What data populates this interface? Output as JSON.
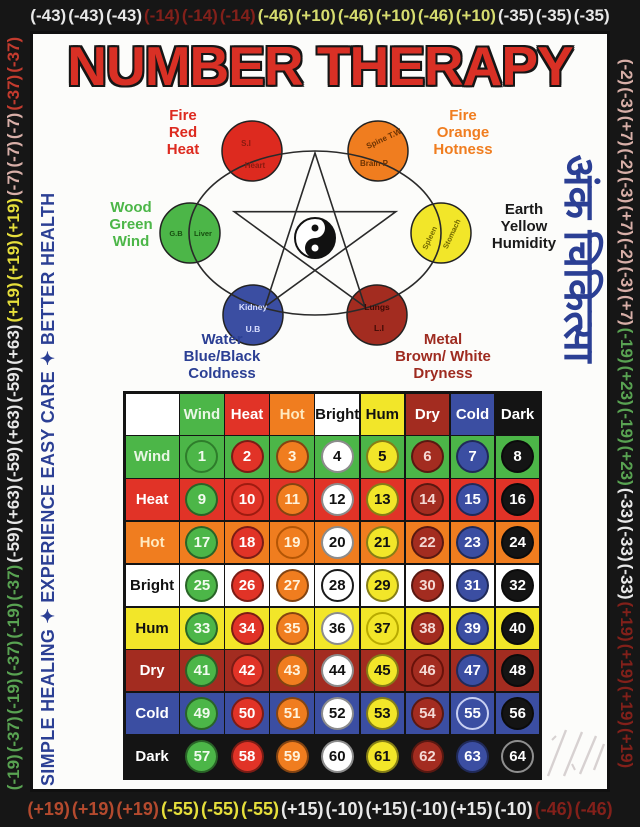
{
  "title": "NUMBER THERAPY",
  "side_title_hindi": "अंक चिकित्सा",
  "slogan": "SIMPLE HEALING ✦ EXPERIENCE  EASY CARE  ✦  BETTER HEALTH",
  "border_palette": {
    "wh": "#E8E8E8",
    "dr": "#82201A",
    "rd": "#C23B2E",
    "yg": "#D6DC6F",
    "ye": "#E6DF3B",
    "gr": "#59A352",
    "pk": "#D8AFA8",
    "or": "#B44A2E"
  },
  "border_numbers": {
    "top": [
      [
        "(-43)",
        "wh"
      ],
      [
        "(-43)",
        "wh"
      ],
      [
        "(-43)",
        "wh"
      ],
      [
        "(-14)",
        "dr"
      ],
      [
        "(-14)",
        "dr"
      ],
      [
        "(-14)",
        "dr"
      ],
      [
        "(-46)",
        "yg"
      ],
      [
        "(+10)",
        "yg"
      ],
      [
        "(-46)",
        "yg"
      ],
      [
        "(+10)",
        "yg"
      ],
      [
        "(-46)",
        "yg"
      ],
      [
        "(+10)",
        "yg"
      ],
      [
        "(-35)",
        "wh"
      ],
      [
        "(-35)",
        "wh"
      ],
      [
        "(-35)",
        "wh"
      ]
    ],
    "bottom": [
      [
        "(+19)",
        "or"
      ],
      [
        "(+19)",
        "or"
      ],
      [
        "(+19)",
        "or"
      ],
      [
        "(-55)",
        "ye"
      ],
      [
        "(-55)",
        "ye"
      ],
      [
        "(-55)",
        "ye"
      ],
      [
        "(+15)",
        "wh"
      ],
      [
        "(-10)",
        "wh"
      ],
      [
        "(+15)",
        "wh"
      ],
      [
        "(-10)",
        "wh"
      ],
      [
        "(+15)",
        "wh"
      ],
      [
        "(-10)",
        "wh"
      ],
      [
        "(-46)",
        "dr"
      ],
      [
        "(-46)",
        "dr"
      ]
    ],
    "left_bottom_to_top": [
      [
        "(-19)",
        "gr"
      ],
      [
        "(-37)",
        "gr"
      ],
      [
        "(-19)",
        "gr"
      ],
      [
        "(-37)",
        "gr"
      ],
      [
        "(-19)",
        "gr"
      ],
      [
        "(-37)",
        "gr"
      ],
      [
        "(-59)",
        "wh"
      ],
      [
        "(+63)",
        "wh"
      ],
      [
        "(-59)",
        "wh"
      ],
      [
        "(+63)",
        "wh"
      ],
      [
        "(-59)",
        "wh"
      ],
      [
        "(+63)",
        "wh"
      ],
      [
        "(+19)",
        "ye"
      ],
      [
        "(+19)",
        "ye"
      ],
      [
        "(+19)",
        "ye"
      ],
      [
        "(-7)",
        "pk"
      ],
      [
        "(-7)",
        "pk"
      ],
      [
        "(-7)",
        "pk"
      ],
      [
        "(-37)",
        "rd"
      ],
      [
        "(-37)",
        "rd"
      ]
    ],
    "right_top_to_bottom": [
      [
        "(-2)",
        "pk"
      ],
      [
        "(-3)",
        "pk"
      ],
      [
        "(+7)",
        "pk"
      ],
      [
        "(-2)",
        "pk"
      ],
      [
        "(-3)",
        "pk"
      ],
      [
        "(+7)",
        "pk"
      ],
      [
        "(-2)",
        "pk"
      ],
      [
        "(-3)",
        "pk"
      ],
      [
        "(+7)",
        "pk"
      ],
      [
        "(-19)",
        "gr"
      ],
      [
        "(+23)",
        "gr"
      ],
      [
        "(-19)",
        "gr"
      ],
      [
        "(+23)",
        "gr"
      ],
      [
        "(-33)",
        "wh"
      ],
      [
        "(-33)",
        "wh"
      ],
      [
        "(-33)",
        "wh"
      ],
      [
        "(+19)",
        "dr"
      ],
      [
        "(+19)",
        "dr"
      ],
      [
        "(+19)",
        "dr"
      ],
      [
        "(+19)",
        "dr"
      ]
    ]
  },
  "diagram": {
    "elements": [
      {
        "name": "fire-red",
        "label": "Fire\nRed\nHeat",
        "label_color": "#DD2A1F",
        "fill": "#DD2A1F",
        "organ_top": "S.I",
        "organ_bottom": "Heart"
      },
      {
        "name": "fire-orange",
        "label": "Fire\nOrange\nHotness",
        "label_color": "#F07D1F",
        "fill": "#F07D1F",
        "organ_top": "Spine T.W",
        "organ_bottom": "Brain P"
      },
      {
        "name": "wood",
        "label": "Wood\nGreen\nWind",
        "label_color": "#4CB648",
        "fill": "#4CB648",
        "organ_top": "G.B",
        "organ_bottom": "Liver"
      },
      {
        "name": "earth",
        "label": "Earth\nYellow\nHumidity",
        "label_color": "#1A1A1A",
        "fill": "#F2E629",
        "organ_top": "Spleen",
        "organ_bottom": "Stomach"
      },
      {
        "name": "water",
        "label": "Water\nBlue/Black\nColdness",
        "label_color": "#2B3F94",
        "fill": "#3B4EA2",
        "organ_top": "Kidney",
        "organ_bottom": "U.B"
      },
      {
        "name": "metal",
        "label": "Metal\nBrown/ White\nDryness",
        "label_color": "#9E2B20",
        "fill": "#A32C20",
        "organ_top": "Lungs",
        "organ_bottom": "L.I"
      }
    ]
  },
  "table": {
    "elements": [
      {
        "name": "Wind",
        "bg": "#4CB648",
        "head_fg": "#E9F6E4",
        "num_fg": "#F2FBEF"
      },
      {
        "name": "Heat",
        "bg": "#E13327",
        "head_fg": "#FFFFFF",
        "num_fg": "#FFFFFF"
      },
      {
        "name": "Hot",
        "bg": "#F07D1F",
        "head_fg": "#FFE9BF",
        "num_fg": "#FFF3DC"
      },
      {
        "name": "Bright",
        "bg": "#FFFFFF",
        "head_fg": "#111111",
        "num_fg": "#111111"
      },
      {
        "name": "Hum",
        "bg": "#F2E629",
        "head_fg": "#111111",
        "num_fg": "#111111"
      },
      {
        "name": "Dry",
        "bg": "#A32C20",
        "head_fg": "#FFFFFF",
        "num_fg": "#F4D9D4"
      },
      {
        "name": "Cold",
        "bg": "#3B4EA2",
        "head_fg": "#FFFFFF",
        "num_fg": "#FFFFFF"
      },
      {
        "name": "Dark",
        "bg": "#141414",
        "head_fg": "#FFFFFF",
        "num_fg": "#FFFFFF"
      }
    ],
    "matrix": [
      [
        1,
        2,
        3,
        4,
        5,
        6,
        7,
        8
      ],
      [
        9,
        10,
        11,
        12,
        13,
        14,
        15,
        16
      ],
      [
        17,
        18,
        19,
        20,
        21,
        22,
        23,
        24
      ],
      [
        25,
        26,
        27,
        28,
        29,
        30,
        31,
        32
      ],
      [
        33,
        34,
        35,
        36,
        37,
        38,
        39,
        40
      ],
      [
        41,
        42,
        43,
        44,
        45,
        46,
        47,
        48
      ],
      [
        49,
        50,
        51,
        52,
        53,
        54,
        55,
        56
      ],
      [
        57,
        58,
        59,
        60,
        61,
        62,
        63,
        64
      ]
    ],
    "ring_default": "rgba(0,0,0,0.45)",
    "ring_overrides": {
      "1": "#2E7D2B",
      "10": "#9E1B10",
      "19": "#B35505",
      "28": "#1A1A1A",
      "37": "#B7AA00",
      "46": "#67120A",
      "55": "#C9D0F2",
      "64": "#8F8F8F"
    }
  }
}
